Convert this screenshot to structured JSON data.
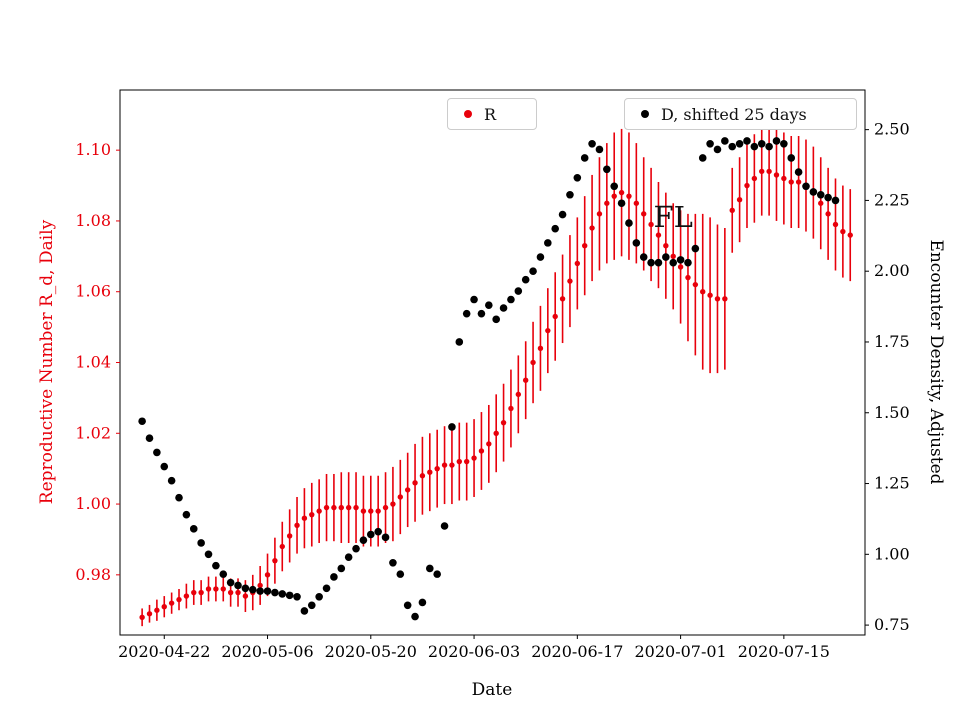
{
  "figure": {
    "background": "#ffffff",
    "annotation": {
      "text": "FL",
      "date": "2020-06-30",
      "value_left_axis": 1.081
    }
  },
  "legend": [
    {
      "label": "R",
      "marker_color": "#e8000b"
    },
    {
      "label": "D, shifted 25 days",
      "marker_color": "#000000"
    }
  ],
  "chart_data": {
    "type": "scatter",
    "title": "",
    "xlabel": "Date",
    "x_origin": "2020-04-22",
    "x_range_days": [
      -6,
      95
    ],
    "x_ticks": [
      "2020-04-22",
      "2020-05-06",
      "2020-05-20",
      "2020-06-03",
      "2020-06-17",
      "2020-07-01",
      "2020-07-15"
    ],
    "left_axis": {
      "label": "Reproductive Number R_d, Daily",
      "color": "#e8000b",
      "ticks": [
        0.98,
        1.0,
        1.02,
        1.04,
        1.06,
        1.08,
        1.1
      ],
      "range": [
        0.963,
        1.117
      ]
    },
    "right_axis": {
      "label": "Encounter Density, Adjusted",
      "color": "#000000",
      "ticks": [
        0.75,
        1.0,
        1.25,
        1.5,
        1.75,
        2.0,
        2.25,
        2.5
      ],
      "range": [
        0.715,
        2.64
      ]
    },
    "series": [
      {
        "name": "R",
        "axis": "left",
        "style": "errorbar-scatter",
        "color": "#e8000b",
        "start_date": "2020-04-19",
        "values": [
          0.968,
          0.969,
          0.97,
          0.971,
          0.972,
          0.973,
          0.974,
          0.975,
          0.975,
          0.976,
          0.976,
          0.976,
          0.975,
          0.975,
          0.974,
          0.975,
          0.977,
          0.98,
          0.984,
          0.988,
          0.991,
          0.994,
          0.996,
          0.997,
          0.998,
          0.999,
          0.999,
          0.999,
          0.999,
          0.999,
          0.998,
          0.998,
          0.998,
          0.999,
          1.0,
          1.002,
          1.004,
          1.006,
          1.008,
          1.009,
          1.01,
          1.011,
          1.011,
          1.012,
          1.012,
          1.013,
          1.015,
          1.017,
          1.02,
          1.023,
          1.027,
          1.031,
          1.035,
          1.04,
          1.044,
          1.049,
          1.053,
          1.058,
          1.063,
          1.068,
          1.073,
          1.078,
          1.082,
          1.085,
          1.087,
          1.088,
          1.087,
          1.085,
          1.082,
          1.079,
          1.076,
          1.073,
          1.07,
          1.067,
          1.064,
          1.062,
          1.06,
          1.059,
          1.058,
          1.058,
          1.083,
          1.086,
          1.09,
          1.092,
          1.094,
          1.094,
          1.093,
          1.092,
          1.091,
          1.091,
          1.09,
          1.088,
          1.085,
          1.082,
          1.079,
          1.077,
          1.076
        ],
        "errors": [
          0.0025,
          0.0025,
          0.003,
          0.003,
          0.003,
          0.003,
          0.0035,
          0.0035,
          0.0035,
          0.0035,
          0.0035,
          0.0035,
          0.004,
          0.004,
          0.0045,
          0.005,
          0.0055,
          0.006,
          0.0065,
          0.007,
          0.0075,
          0.008,
          0.0085,
          0.009,
          0.009,
          0.0095,
          0.0095,
          0.01,
          0.01,
          0.01,
          0.01,
          0.01,
          0.01,
          0.01,
          0.0105,
          0.0105,
          0.0105,
          0.011,
          0.011,
          0.011,
          0.011,
          0.011,
          0.011,
          0.011,
          0.011,
          0.011,
          0.011,
          0.011,
          0.011,
          0.011,
          0.011,
          0.011,
          0.011,
          0.0115,
          0.012,
          0.012,
          0.0125,
          0.0125,
          0.013,
          0.013,
          0.014,
          0.015,
          0.016,
          0.017,
          0.018,
          0.018,
          0.018,
          0.017,
          0.016,
          0.016,
          0.015,
          0.015,
          0.015,
          0.016,
          0.018,
          0.02,
          0.022,
          0.022,
          0.021,
          0.02,
          0.012,
          0.012,
          0.012,
          0.0125,
          0.0125,
          0.0125,
          0.013,
          0.013,
          0.013,
          0.013,
          0.013,
          0.013,
          0.013,
          0.013,
          0.013,
          0.013,
          0.013
        ]
      },
      {
        "name": "D, shifted 25 days",
        "axis": "right",
        "style": "scatter",
        "color": "#000000",
        "start_date": "2020-04-19",
        "values": [
          1.47,
          1.41,
          1.36,
          1.31,
          1.26,
          1.2,
          1.14,
          1.09,
          1.04,
          1.0,
          0.96,
          0.93,
          0.9,
          0.89,
          0.88,
          0.875,
          0.87,
          0.87,
          0.865,
          0.86,
          0.855,
          0.85,
          0.8,
          0.82,
          0.85,
          0.88,
          0.92,
          0.95,
          0.99,
          1.02,
          1.05,
          1.07,
          1.08,
          1.06,
          0.97,
          0.93,
          0.82,
          0.78,
          0.83,
          0.95,
          0.93,
          1.1,
          1.45,
          1.75,
          1.85,
          1.9,
          1.85,
          1.88,
          1.83,
          1.87,
          1.9,
          1.93,
          1.97,
          2.0,
          2.05,
          2.1,
          2.15,
          2.2,
          2.27,
          2.33,
          2.4,
          2.45,
          2.43,
          2.36,
          2.3,
          2.24,
          2.17,
          2.1,
          2.05,
          2.03,
          2.03,
          2.05,
          2.03,
          2.04,
          2.03,
          2.08,
          2.4,
          2.45,
          2.43,
          2.46,
          2.44,
          2.45,
          2.46,
          2.44,
          2.45,
          2.44,
          2.46,
          2.45,
          2.4,
          2.35,
          2.3,
          2.28,
          2.27,
          2.26,
          2.25
        ]
      }
    ],
    "artifacts": [
      {
        "date": "2020-07-06",
        "value": 2.52
      },
      {
        "date": "2020-07-10",
        "value": 2.53
      }
    ]
  }
}
